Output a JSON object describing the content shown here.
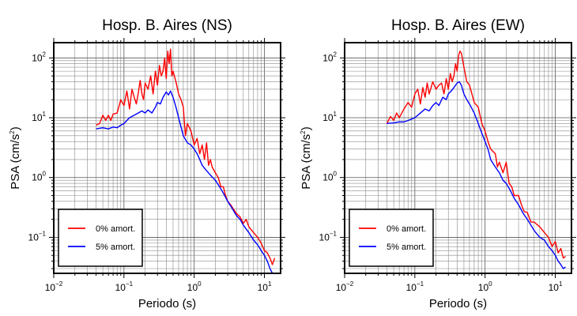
{
  "chart_data": [
    {
      "type": "line",
      "title": "Hosp. B. Aires (NS)",
      "xlabel": "Periodo (s)",
      "ylabel": "PSA (cm/s",
      "ylabel_sup": "2",
      "ylabel_end": ")",
      "xscale": "log",
      "yscale": "log",
      "xlim": [
        0.01,
        17
      ],
      "ylim": [
        0.025,
        180
      ],
      "grid": true,
      "legend_position": "bottom-left",
      "x_ticks": [
        {
          "base": "10",
          "exp": "−2"
        },
        {
          "base": "10",
          "exp": "−1"
        },
        {
          "base": "10",
          "exp": "0"
        },
        {
          "base": "10",
          "exp": "1"
        }
      ],
      "y_ticks": [
        {
          "base": "10",
          "exp": "−1"
        },
        {
          "base": "10",
          "exp": "0"
        },
        {
          "base": "10",
          "exp": "1"
        },
        {
          "base": "10",
          "exp": "2"
        }
      ],
      "series": [
        {
          "name": "0% amort.",
          "color": "#ff0000",
          "x": [
            0.04,
            0.045,
            0.05,
            0.055,
            0.06,
            0.065,
            0.07,
            0.08,
            0.09,
            0.1,
            0.11,
            0.12,
            0.13,
            0.14,
            0.15,
            0.16,
            0.17,
            0.18,
            0.19,
            0.2,
            0.22,
            0.24,
            0.26,
            0.28,
            0.3,
            0.32,
            0.34,
            0.36,
            0.38,
            0.4,
            0.42,
            0.44,
            0.46,
            0.48,
            0.5,
            0.55,
            0.6,
            0.65,
            0.7,
            0.75,
            0.8,
            0.9,
            1.0,
            1.1,
            1.2,
            1.3,
            1.4,
            1.5,
            1.6,
            1.7,
            1.8,
            2.0,
            2.2,
            2.4,
            2.6,
            2.8,
            3.0,
            3.3,
            3.6,
            4.0,
            4.5,
            5.0,
            5.5,
            6.0,
            7.0,
            8.0,
            9.0,
            10.0,
            11.0,
            12.0,
            13.0,
            14.0
          ],
          "y": [
            7.5,
            8.0,
            11.0,
            9.0,
            11.0,
            9.0,
            11.5,
            12.0,
            20.0,
            16.0,
            28.0,
            14.0,
            30.0,
            22.0,
            17.0,
            26.0,
            42.0,
            25.0,
            20.0,
            38.0,
            30.0,
            50.0,
            25.0,
            60.0,
            35.0,
            75.0,
            50.0,
            60.0,
            100.0,
            45.0,
            130.0,
            80.0,
            140.0,
            50.0,
            60.0,
            40.0,
            25.0,
            20.0,
            15.0,
            5.0,
            8.0,
            6.0,
            3.5,
            4.5,
            2.5,
            3.5,
            2.0,
            3.8,
            1.6,
            2.0,
            1.5,
            1.2,
            1.0,
            0.7,
            0.7,
            0.5,
            0.4,
            0.35,
            0.3,
            0.25,
            0.22,
            0.17,
            0.2,
            0.15,
            0.12,
            0.1,
            0.08,
            0.06,
            0.055,
            0.045,
            0.035,
            0.045
          ]
        },
        {
          "name": "5% amort.",
          "color": "#0000ff",
          "x": [
            0.04,
            0.05,
            0.06,
            0.07,
            0.08,
            0.09,
            0.1,
            0.12,
            0.14,
            0.16,
            0.18,
            0.2,
            0.22,
            0.25,
            0.28,
            0.3,
            0.33,
            0.36,
            0.4,
            0.43,
            0.46,
            0.5,
            0.55,
            0.6,
            0.7,
            0.8,
            0.9,
            1.0,
            1.1,
            1.2,
            1.3,
            1.5,
            1.7,
            2.0,
            2.3,
            2.6,
            3.0,
            3.5,
            4.0,
            4.5,
            5.0,
            6.0,
            7.0,
            8.0,
            9.0,
            10.0,
            11.0,
            12.0,
            13.0,
            14.0
          ],
          "y": [
            6.5,
            6.8,
            6.5,
            7.0,
            6.8,
            7.5,
            8.0,
            10.0,
            11.0,
            12.0,
            13.0,
            12.0,
            13.5,
            12.0,
            15.0,
            18.0,
            17.0,
            22.0,
            27.0,
            24.0,
            28.0,
            22.0,
            15.0,
            10.0,
            5.0,
            3.8,
            3.5,
            3.0,
            2.5,
            2.0,
            1.6,
            1.3,
            1.1,
            0.9,
            0.7,
            0.55,
            0.4,
            0.3,
            0.23,
            0.2,
            0.16,
            0.12,
            0.09,
            0.075,
            0.06,
            0.05,
            0.04,
            0.03,
            0.025,
            0.025
          ]
        }
      ]
    },
    {
      "type": "line",
      "title": "Hosp. B. Aires (EW)",
      "xlabel": "Periodo (s)",
      "ylabel": "PSA (cm/s",
      "ylabel_sup": "2",
      "ylabel_end": ")",
      "xscale": "log",
      "yscale": "log",
      "xlim": [
        0.01,
        17
      ],
      "ylim": [
        0.025,
        180
      ],
      "grid": true,
      "legend_position": "bottom-left",
      "x_ticks": [
        {
          "base": "10",
          "exp": "−2"
        },
        {
          "base": "10",
          "exp": "−1"
        },
        {
          "base": "10",
          "exp": "0"
        },
        {
          "base": "10",
          "exp": "1"
        }
      ],
      "y_ticks": [
        {
          "base": "10",
          "exp": "−1"
        },
        {
          "base": "10",
          "exp": "0"
        },
        {
          "base": "10",
          "exp": "1"
        },
        {
          "base": "10",
          "exp": "2"
        }
      ],
      "series": [
        {
          "name": "0% amort.",
          "color": "#ff0000",
          "x": [
            0.04,
            0.045,
            0.05,
            0.055,
            0.06,
            0.07,
            0.08,
            0.09,
            0.1,
            0.11,
            0.12,
            0.13,
            0.14,
            0.15,
            0.16,
            0.18,
            0.2,
            0.22,
            0.24,
            0.26,
            0.28,
            0.3,
            0.32,
            0.34,
            0.36,
            0.38,
            0.4,
            0.42,
            0.44,
            0.46,
            0.5,
            0.55,
            0.6,
            0.65,
            0.7,
            0.8,
            0.9,
            1.0,
            1.1,
            1.2,
            1.4,
            1.5,
            1.6,
            1.8,
            2.0,
            2.2,
            2.4,
            2.6,
            3.0,
            3.3,
            3.6,
            4.0,
            4.5,
            5.0,
            6.0,
            7.0,
            8.0,
            9.0,
            10.0,
            11.0,
            12.0,
            13.0,
            14.0
          ],
          "y": [
            8.0,
            10.5,
            9.0,
            12.0,
            10.0,
            14.0,
            18.0,
            15.0,
            25.0,
            30.0,
            17.0,
            32.0,
            22.0,
            38.0,
            25.0,
            40.0,
            30.0,
            35.0,
            38.0,
            25.0,
            45.0,
            30.0,
            55.0,
            40.0,
            50.0,
            80.0,
            60.0,
            110.0,
            130.0,
            120.0,
            70.0,
            40.0,
            35.0,
            25.0,
            18.0,
            15.0,
            8.0,
            6.0,
            4.0,
            3.0,
            2.5,
            1.5,
            1.8,
            1.2,
            1.8,
            0.8,
            0.7,
            0.5,
            0.5,
            0.35,
            0.27,
            0.26,
            0.18,
            0.18,
            0.15,
            0.12,
            0.1,
            0.07,
            0.085,
            0.055,
            0.065,
            0.045,
            0.048
          ]
        },
        {
          "name": "5% amort.",
          "color": "#0000ff",
          "x": [
            0.04,
            0.05,
            0.06,
            0.07,
            0.08,
            0.09,
            0.1,
            0.12,
            0.14,
            0.16,
            0.18,
            0.2,
            0.22,
            0.25,
            0.28,
            0.3,
            0.33,
            0.36,
            0.4,
            0.43,
            0.46,
            0.5,
            0.55,
            0.6,
            0.7,
            0.8,
            0.9,
            1.0,
            1.1,
            1.2,
            1.4,
            1.6,
            1.8,
            2.0,
            2.3,
            2.6,
            3.0,
            3.5,
            4.0,
            4.5,
            5.0,
            6.0,
            7.0,
            8.0,
            9.0,
            10.0,
            11.0,
            12.0,
            13.0,
            14.0
          ],
          "y": [
            8.0,
            8.2,
            8.5,
            8.5,
            9.0,
            9.5,
            10.0,
            12.0,
            14.0,
            13.0,
            16.0,
            18.0,
            16.0,
            22.0,
            20.0,
            25.0,
            28.0,
            32.0,
            38.0,
            40.0,
            35.0,
            25.0,
            20.0,
            17.0,
            12.0,
            8.0,
            5.5,
            4.0,
            3.0,
            2.0,
            1.5,
            1.2,
            0.9,
            0.8,
            0.6,
            0.45,
            0.35,
            0.25,
            0.2,
            0.16,
            0.13,
            0.1,
            0.09,
            0.07,
            0.06,
            0.05,
            0.04,
            0.035,
            0.03,
            0.032
          ]
        }
      ]
    }
  ]
}
